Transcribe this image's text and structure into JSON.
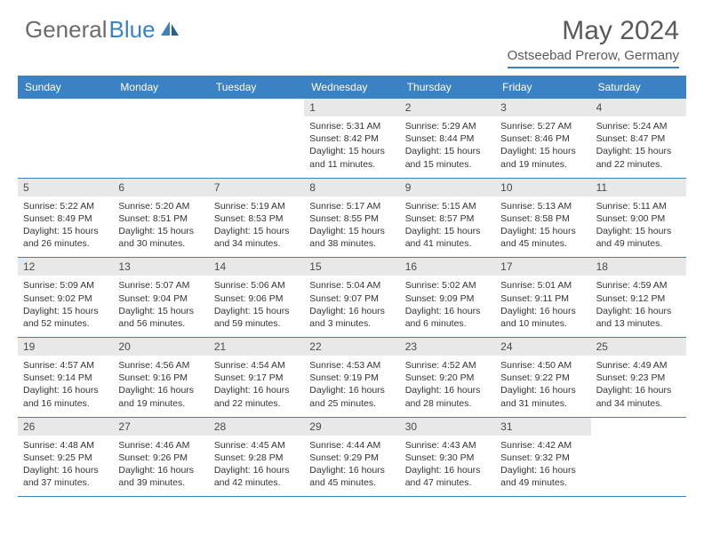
{
  "brand": {
    "part1": "General",
    "part2": "Blue"
  },
  "title": "May 2024",
  "location": "Ostseebad Prerow, Germany",
  "colors": {
    "accent": "#3b82c4",
    "header_text": "#ffffff",
    "daynum_bg": "#e8e8e8",
    "text": "#333333",
    "title_text": "#5a5a5a"
  },
  "day_names": [
    "Sunday",
    "Monday",
    "Tuesday",
    "Wednesday",
    "Thursday",
    "Friday",
    "Saturday"
  ],
  "weeks": [
    [
      {
        "n": "",
        "sr": "",
        "ss": "",
        "dl": ""
      },
      {
        "n": "",
        "sr": "",
        "ss": "",
        "dl": ""
      },
      {
        "n": "",
        "sr": "",
        "ss": "",
        "dl": ""
      },
      {
        "n": "1",
        "sr": "Sunrise: 5:31 AM",
        "ss": "Sunset: 8:42 PM",
        "dl": "Daylight: 15 hours and 11 minutes."
      },
      {
        "n": "2",
        "sr": "Sunrise: 5:29 AM",
        "ss": "Sunset: 8:44 PM",
        "dl": "Daylight: 15 hours and 15 minutes."
      },
      {
        "n": "3",
        "sr": "Sunrise: 5:27 AM",
        "ss": "Sunset: 8:46 PM",
        "dl": "Daylight: 15 hours and 19 minutes."
      },
      {
        "n": "4",
        "sr": "Sunrise: 5:24 AM",
        "ss": "Sunset: 8:47 PM",
        "dl": "Daylight: 15 hours and 22 minutes."
      }
    ],
    [
      {
        "n": "5",
        "sr": "Sunrise: 5:22 AM",
        "ss": "Sunset: 8:49 PM",
        "dl": "Daylight: 15 hours and 26 minutes."
      },
      {
        "n": "6",
        "sr": "Sunrise: 5:20 AM",
        "ss": "Sunset: 8:51 PM",
        "dl": "Daylight: 15 hours and 30 minutes."
      },
      {
        "n": "7",
        "sr": "Sunrise: 5:19 AM",
        "ss": "Sunset: 8:53 PM",
        "dl": "Daylight: 15 hours and 34 minutes."
      },
      {
        "n": "8",
        "sr": "Sunrise: 5:17 AM",
        "ss": "Sunset: 8:55 PM",
        "dl": "Daylight: 15 hours and 38 minutes."
      },
      {
        "n": "9",
        "sr": "Sunrise: 5:15 AM",
        "ss": "Sunset: 8:57 PM",
        "dl": "Daylight: 15 hours and 41 minutes."
      },
      {
        "n": "10",
        "sr": "Sunrise: 5:13 AM",
        "ss": "Sunset: 8:58 PM",
        "dl": "Daylight: 15 hours and 45 minutes."
      },
      {
        "n": "11",
        "sr": "Sunrise: 5:11 AM",
        "ss": "Sunset: 9:00 PM",
        "dl": "Daylight: 15 hours and 49 minutes."
      }
    ],
    [
      {
        "n": "12",
        "sr": "Sunrise: 5:09 AM",
        "ss": "Sunset: 9:02 PM",
        "dl": "Daylight: 15 hours and 52 minutes."
      },
      {
        "n": "13",
        "sr": "Sunrise: 5:07 AM",
        "ss": "Sunset: 9:04 PM",
        "dl": "Daylight: 15 hours and 56 minutes."
      },
      {
        "n": "14",
        "sr": "Sunrise: 5:06 AM",
        "ss": "Sunset: 9:06 PM",
        "dl": "Daylight: 15 hours and 59 minutes."
      },
      {
        "n": "15",
        "sr": "Sunrise: 5:04 AM",
        "ss": "Sunset: 9:07 PM",
        "dl": "Daylight: 16 hours and 3 minutes."
      },
      {
        "n": "16",
        "sr": "Sunrise: 5:02 AM",
        "ss": "Sunset: 9:09 PM",
        "dl": "Daylight: 16 hours and 6 minutes."
      },
      {
        "n": "17",
        "sr": "Sunrise: 5:01 AM",
        "ss": "Sunset: 9:11 PM",
        "dl": "Daylight: 16 hours and 10 minutes."
      },
      {
        "n": "18",
        "sr": "Sunrise: 4:59 AM",
        "ss": "Sunset: 9:12 PM",
        "dl": "Daylight: 16 hours and 13 minutes."
      }
    ],
    [
      {
        "n": "19",
        "sr": "Sunrise: 4:57 AM",
        "ss": "Sunset: 9:14 PM",
        "dl": "Daylight: 16 hours and 16 minutes."
      },
      {
        "n": "20",
        "sr": "Sunrise: 4:56 AM",
        "ss": "Sunset: 9:16 PM",
        "dl": "Daylight: 16 hours and 19 minutes."
      },
      {
        "n": "21",
        "sr": "Sunrise: 4:54 AM",
        "ss": "Sunset: 9:17 PM",
        "dl": "Daylight: 16 hours and 22 minutes."
      },
      {
        "n": "22",
        "sr": "Sunrise: 4:53 AM",
        "ss": "Sunset: 9:19 PM",
        "dl": "Daylight: 16 hours and 25 minutes."
      },
      {
        "n": "23",
        "sr": "Sunrise: 4:52 AM",
        "ss": "Sunset: 9:20 PM",
        "dl": "Daylight: 16 hours and 28 minutes."
      },
      {
        "n": "24",
        "sr": "Sunrise: 4:50 AM",
        "ss": "Sunset: 9:22 PM",
        "dl": "Daylight: 16 hours and 31 minutes."
      },
      {
        "n": "25",
        "sr": "Sunrise: 4:49 AM",
        "ss": "Sunset: 9:23 PM",
        "dl": "Daylight: 16 hours and 34 minutes."
      }
    ],
    [
      {
        "n": "26",
        "sr": "Sunrise: 4:48 AM",
        "ss": "Sunset: 9:25 PM",
        "dl": "Daylight: 16 hours and 37 minutes."
      },
      {
        "n": "27",
        "sr": "Sunrise: 4:46 AM",
        "ss": "Sunset: 9:26 PM",
        "dl": "Daylight: 16 hours and 39 minutes."
      },
      {
        "n": "28",
        "sr": "Sunrise: 4:45 AM",
        "ss": "Sunset: 9:28 PM",
        "dl": "Daylight: 16 hours and 42 minutes."
      },
      {
        "n": "29",
        "sr": "Sunrise: 4:44 AM",
        "ss": "Sunset: 9:29 PM",
        "dl": "Daylight: 16 hours and 45 minutes."
      },
      {
        "n": "30",
        "sr": "Sunrise: 4:43 AM",
        "ss": "Sunset: 9:30 PM",
        "dl": "Daylight: 16 hours and 47 minutes."
      },
      {
        "n": "31",
        "sr": "Sunrise: 4:42 AM",
        "ss": "Sunset: 9:32 PM",
        "dl": "Daylight: 16 hours and 49 minutes."
      },
      {
        "n": "",
        "sr": "",
        "ss": "",
        "dl": ""
      }
    ]
  ]
}
